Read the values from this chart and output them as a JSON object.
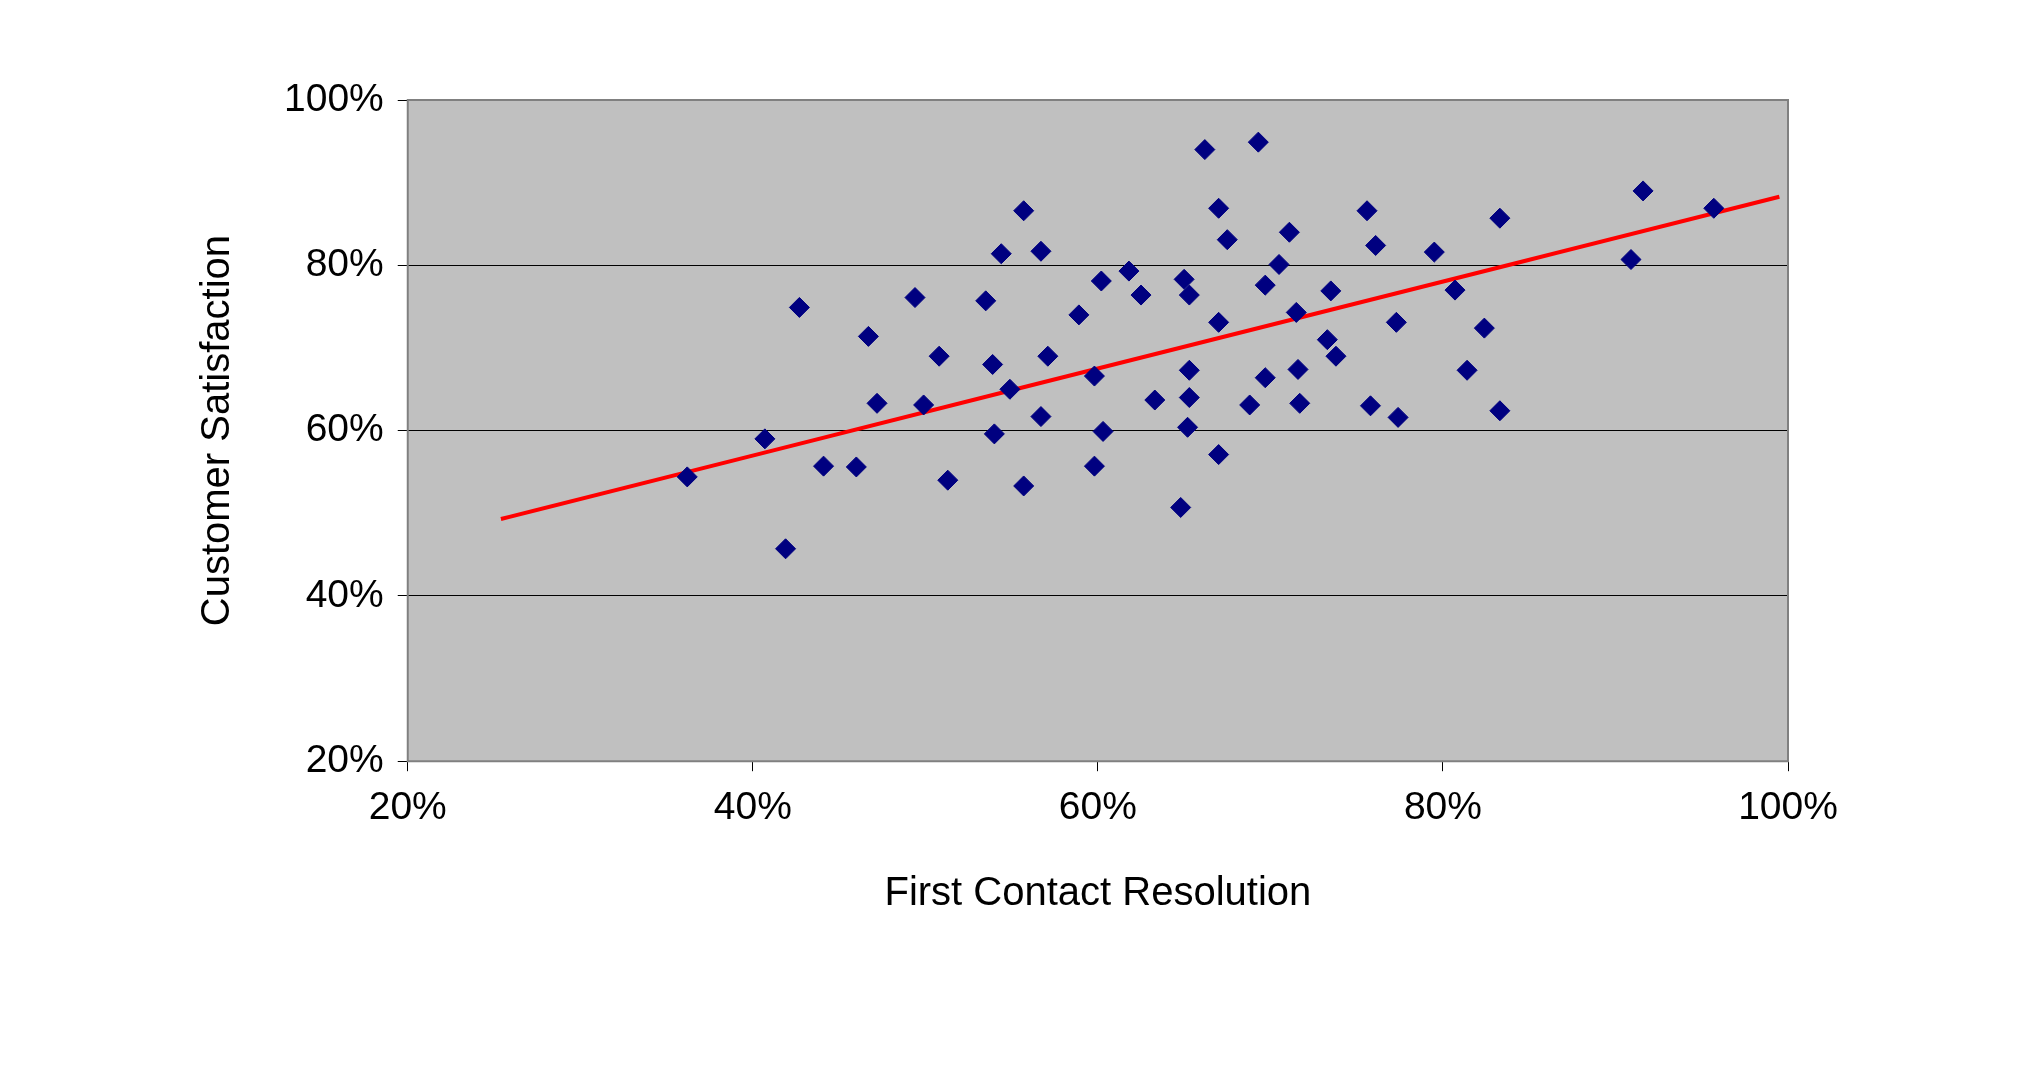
{
  "chart_data": {
    "type": "scatter",
    "xlabel": "First Contact Resolution",
    "ylabel": "Customer Satisfaction",
    "xlim": [
      20,
      100
    ],
    "ylim": [
      20,
      100
    ],
    "xticks": [
      {
        "value": 20,
        "label": "20%"
      },
      {
        "value": 40,
        "label": "40%"
      },
      {
        "value": 60,
        "label": "60%"
      },
      {
        "value": 80,
        "label": "80%"
      },
      {
        "value": 100,
        "label": "100%"
      }
    ],
    "yticks": [
      {
        "value": 20,
        "label": "20%"
      },
      {
        "value": 40,
        "label": "40%"
      },
      {
        "value": 60,
        "label": "60%"
      },
      {
        "value": 80,
        "label": "80%"
      },
      {
        "value": 100,
        "label": "100%"
      }
    ],
    "grid": "y",
    "legend": false,
    "series": [
      {
        "color": "#000080",
        "marker": "diamond",
        "x": [
          36.2,
          40.7,
          41.9,
          42.7,
          44.1,
          46.0,
          46.7,
          47.2,
          49.4,
          49.9,
          50.8,
          51.3,
          53.5,
          53.9,
          54.0,
          54.4,
          54.9,
          55.7,
          55.7,
          56.7,
          56.7,
          57.1,
          58.9,
          59.8,
          59.8,
          60.2,
          60.3,
          61.8,
          62.5,
          63.3,
          64.8,
          65.0,
          65.2,
          65.3,
          65.3,
          65.3,
          66.2,
          67.0,
          67.0,
          67.0,
          67.5,
          68.8,
          69.3,
          69.7,
          69.7,
          70.5,
          71.1,
          71.5,
          71.6,
          71.7,
          73.3,
          73.5,
          73.8,
          75.6,
          75.8,
          76.1,
          77.3,
          77.4,
          79.5,
          80.7,
          81.4,
          82.4,
          83.3,
          83.3,
          90.9,
          91.6,
          95.7
        ],
        "values": [
          54.4,
          59.0,
          45.7,
          74.9,
          55.7,
          55.6,
          71.4,
          63.3,
          76.1,
          63.1,
          69.0,
          54.0,
          75.7,
          68.0,
          59.6,
          81.4,
          65.0,
          86.6,
          53.3,
          81.7,
          61.7,
          69.0,
          74.0,
          55.7,
          66.6,
          78.1,
          59.9,
          79.3,
          76.4,
          63.7,
          50.7,
          78.3,
          60.4,
          64.0,
          67.3,
          76.4,
          94.0,
          57.1,
          86.9,
          73.1,
          83.1,
          63.1,
          94.9,
          66.4,
          77.6,
          80.1,
          84.0,
          74.3,
          67.4,
          63.3,
          71.0,
          76.9,
          69.0,
          86.6,
          63.0,
          82.4,
          73.1,
          61.6,
          81.6,
          77.0,
          67.3,
          72.4,
          85.7,
          62.4,
          80.7,
          89.0,
          86.9
        ]
      },
      {
        "type": "line",
        "marker": "none",
        "color": "#ff0000",
        "x": [
          25.4,
          99.5
        ],
        "values": [
          49.3,
          88.3
        ]
      }
    ]
  }
}
